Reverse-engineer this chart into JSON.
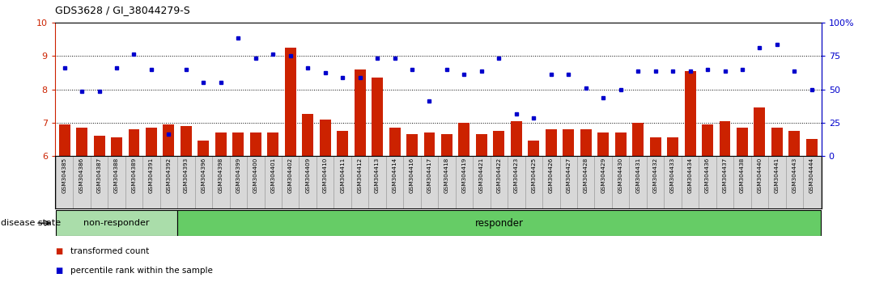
{
  "title": "GDS3628 / GI_38044279-S",
  "samples": [
    "GSM304385",
    "GSM304386",
    "GSM304387",
    "GSM304388",
    "GSM304389",
    "GSM304391",
    "GSM304392",
    "GSM304393",
    "GSM304396",
    "GSM304398",
    "GSM304399",
    "GSM304400",
    "GSM304401",
    "GSM304402",
    "GSM304409",
    "GSM304410",
    "GSM304411",
    "GSM304412",
    "GSM304413",
    "GSM304414",
    "GSM304416",
    "GSM304417",
    "GSM304418",
    "GSM304419",
    "GSM304421",
    "GSM304422",
    "GSM304423",
    "GSM304425",
    "GSM304426",
    "GSM304427",
    "GSM304428",
    "GSM304429",
    "GSM304430",
    "GSM304431",
    "GSM304432",
    "GSM304433",
    "GSM304434",
    "GSM304436",
    "GSM304437",
    "GSM304438",
    "GSM304440",
    "GSM304441",
    "GSM304443",
    "GSM304444"
  ],
  "bar_values": [
    6.95,
    6.85,
    6.6,
    6.55,
    6.8,
    6.85,
    6.95,
    6.9,
    6.45,
    6.7,
    6.7,
    6.7,
    6.7,
    9.25,
    7.25,
    7.1,
    6.75,
    8.6,
    8.35,
    6.85,
    6.65,
    6.7,
    6.65,
    7.0,
    6.65,
    6.75,
    7.05,
    6.45,
    6.8,
    6.8,
    6.8,
    6.7,
    6.7,
    7.0,
    6.55,
    6.55,
    8.55,
    6.95,
    7.05,
    6.85,
    7.45,
    6.85,
    6.75,
    6.5
  ],
  "dot_values": [
    8.65,
    7.95,
    7.95,
    8.65,
    9.05,
    8.6,
    6.65,
    8.6,
    8.2,
    8.2,
    9.55,
    8.95,
    9.05,
    9.0,
    8.65,
    8.5,
    8.35,
    8.35,
    8.95,
    8.95,
    8.6,
    7.65,
    8.6,
    8.45,
    8.55,
    8.95,
    7.25,
    7.15,
    8.45,
    8.45,
    8.05,
    7.75,
    8.0,
    8.55,
    8.55,
    8.55,
    8.55,
    8.6,
    8.55,
    8.6,
    9.25,
    9.35,
    8.55,
    8.0
  ],
  "non_responder_count": 7,
  "ymin": 6,
  "ymax": 10,
  "yticks_left": [
    6,
    7,
    8,
    9,
    10
  ],
  "yticks_right_pct": [
    0,
    25,
    50,
    75,
    100
  ],
  "ytick_labels_right": [
    "0",
    "25",
    "50",
    "75",
    "100%"
  ],
  "dotted_lines": [
    7.0,
    8.0,
    9.0
  ],
  "bar_color": "#cc2200",
  "dot_color": "#0000cc",
  "left_tick_color": "#cc2200",
  "non_responder_color": "#aaddaa",
  "responder_color": "#66cc66",
  "cell_bg_color": "#d8d8d8",
  "cell_border_color": "#999999",
  "legend_red_label": "transformed count",
  "legend_blue_label": "percentile rank within the sample",
  "disease_state_label": "disease state",
  "non_responder_label": "non-responder",
  "responder_label": "responder"
}
